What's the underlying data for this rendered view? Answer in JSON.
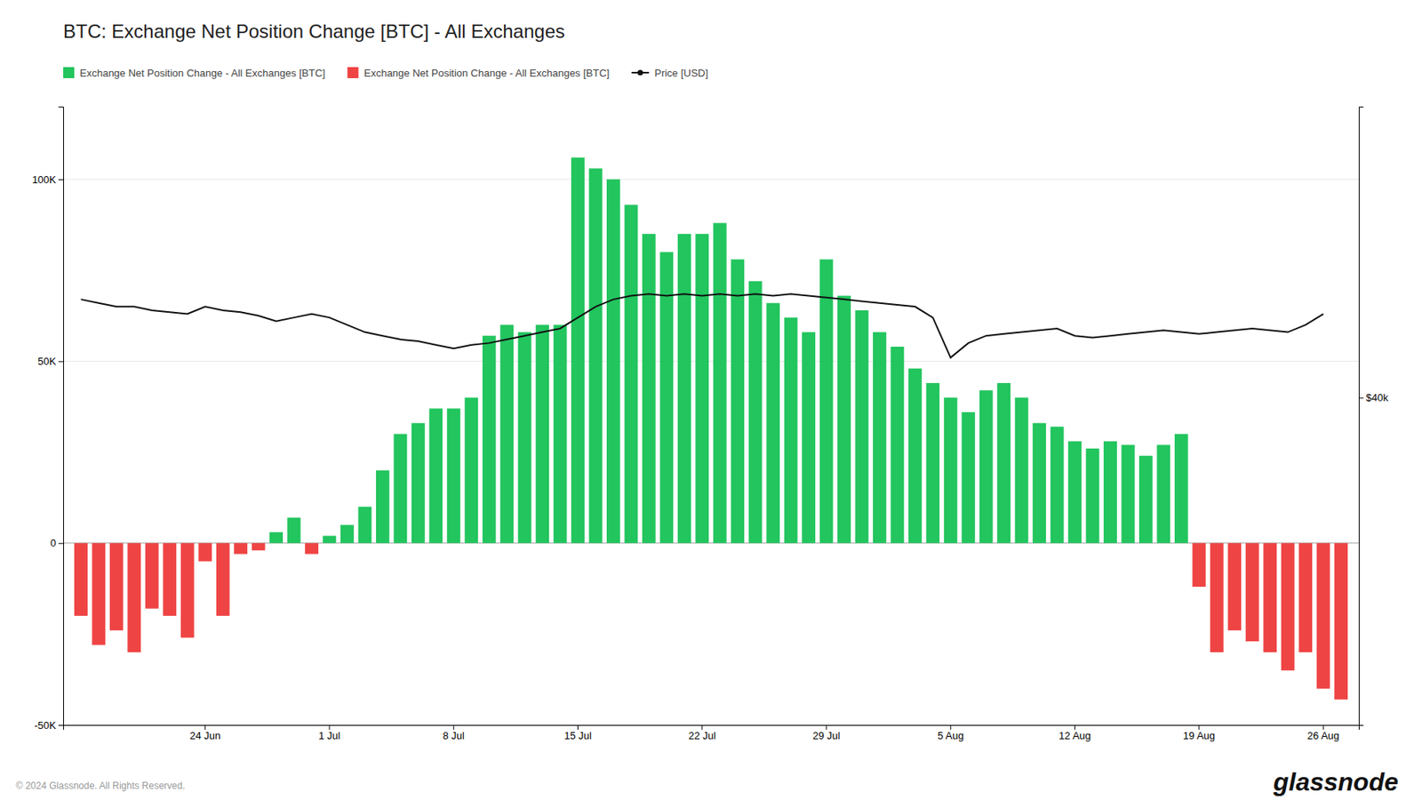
{
  "chart_data": {
    "type": "bar",
    "title": "BTC: Exchange Net Position Change [BTC] - All Exchanges",
    "categories": [
      null,
      null,
      null,
      null,
      null,
      null,
      null,
      "24 Jun",
      null,
      null,
      null,
      null,
      null,
      null,
      "1 Jul",
      null,
      null,
      null,
      null,
      null,
      null,
      "8 Jul",
      null,
      null,
      null,
      null,
      null,
      null,
      "15 Jul",
      null,
      null,
      null,
      null,
      null,
      null,
      "22 Jul",
      null,
      null,
      null,
      null,
      null,
      null,
      "29 Jul",
      null,
      null,
      null,
      null,
      null,
      null,
      "5 Aug",
      null,
      null,
      null,
      null,
      null,
      null,
      "12 Aug",
      null,
      null,
      null,
      null,
      null,
      null,
      "19 Aug",
      null,
      null,
      null,
      null,
      null,
      null,
      "26 Aug",
      null
    ],
    "series": [
      {
        "name": "Exchange Net Position Change - All Exchanges [BTC]",
        "type": "bar",
        "color": "#22c55e",
        "values": [
          null,
          null,
          null,
          null,
          null,
          null,
          null,
          null,
          null,
          null,
          null,
          3000,
          7000,
          null,
          2000,
          5000,
          10000,
          20000,
          30000,
          33000,
          37000,
          37000,
          40000,
          57000,
          60000,
          58000,
          60000,
          60000,
          106000,
          103000,
          100000,
          93000,
          85000,
          80000,
          85000,
          85000,
          88000,
          78000,
          72000,
          66000,
          62000,
          58000,
          78000,
          68000,
          64000,
          58000,
          54000,
          48000,
          44000,
          40000,
          36000,
          42000,
          44000,
          40000,
          33000,
          32000,
          28000,
          26000,
          28000,
          27000,
          24000,
          27000,
          30000,
          null,
          null,
          null,
          null,
          null,
          null,
          null,
          null,
          null
        ]
      },
      {
        "name": "Exchange Net Position Change - All Exchanges [BTC]",
        "type": "bar",
        "color": "#ef4444",
        "values": [
          -20000,
          -28000,
          -24000,
          -30000,
          -18000,
          -20000,
          -26000,
          -5000,
          -20000,
          -3000,
          -2000,
          null,
          null,
          -3000,
          null,
          null,
          null,
          null,
          null,
          null,
          null,
          null,
          null,
          null,
          null,
          null,
          null,
          null,
          null,
          null,
          null,
          null,
          null,
          null,
          null,
          null,
          null,
          null,
          null,
          null,
          null,
          null,
          null,
          null,
          null,
          null,
          null,
          null,
          null,
          null,
          null,
          null,
          null,
          null,
          null,
          null,
          null,
          null,
          null,
          null,
          null,
          null,
          null,
          -12000,
          -30000,
          -24000,
          -27000,
          -30000,
          -35000,
          -30000,
          -40000,
          -43000
        ]
      },
      {
        "name": "Price [USD]",
        "type": "line",
        "color": "#111111",
        "axis": "y2",
        "values": [
          67000,
          66000,
          65000,
          65000,
          64000,
          63500,
          63000,
          65000,
          64000,
          63500,
          62500,
          61000,
          62000,
          63000,
          62000,
          60000,
          58000,
          57000,
          56000,
          55500,
          54500,
          53500,
          54500,
          55000,
          56000,
          57000,
          58000,
          59000,
          62000,
          65000,
          67000,
          68000,
          68500,
          68000,
          68500,
          68000,
          68500,
          68000,
          68500,
          68000,
          68500,
          68000,
          67500,
          67000,
          66500,
          66000,
          65500,
          65000,
          62000,
          51000,
          55000,
          57000,
          57500,
          58000,
          58500,
          59000,
          57000,
          56500,
          57000,
          57500,
          58000,
          58500,
          58000,
          57500,
          58000,
          58500,
          59000,
          58500,
          58000,
          60000,
          63000,
          null
        ]
      }
    ],
    "ylim": [
      -50000,
      120000
    ],
    "yticks": [
      {
        "value": -50000,
        "label": "-50K"
      },
      0,
      {
        "value": 50000,
        "label": "50K"
      },
      {
        "value": 100000,
        "label": "100K"
      }
    ],
    "y2lim": [
      -50000,
      120000
    ],
    "y2ticks": [
      {
        "value": 40000,
        "label": "$40k"
      }
    ],
    "grid": true,
    "legend": "top-left",
    "annotations": [
      "© 2024 Glassnode. All Rights Reserved.",
      "glassnode"
    ]
  }
}
